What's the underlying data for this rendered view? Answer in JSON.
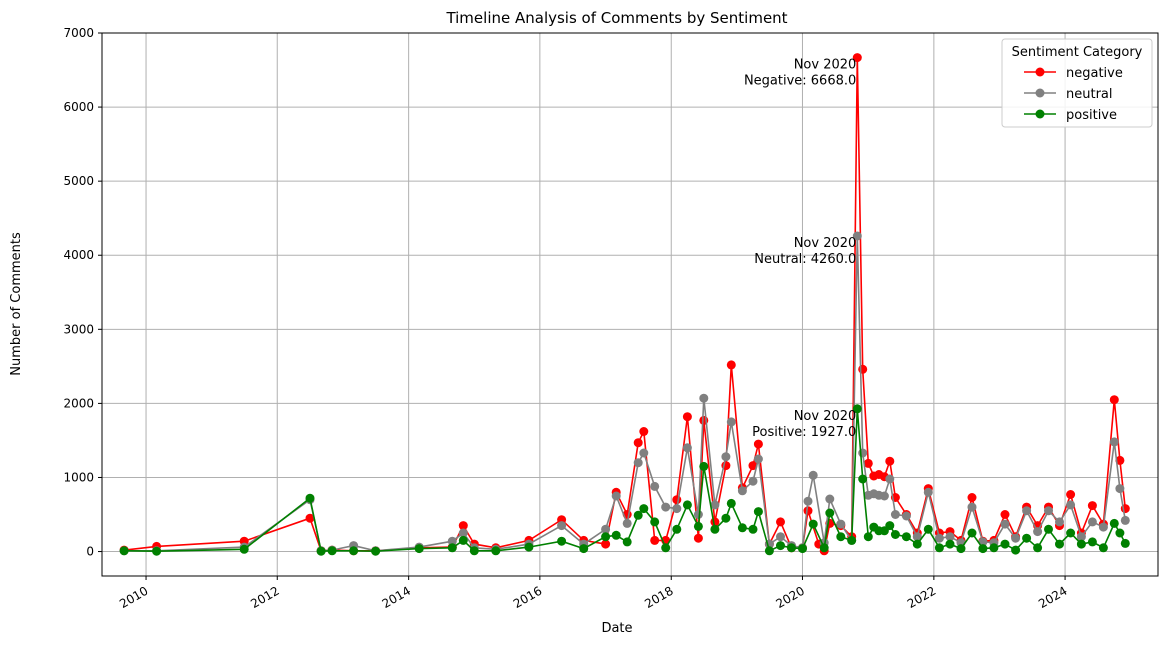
{
  "chart_data": {
    "type": "line",
    "title": "Timeline Analysis of Comments by Sentiment",
    "xlabel": "Date",
    "ylabel": "Number of Comments",
    "xlim": [
      "2009-05-01",
      "2025-06-01"
    ],
    "ylim": [
      -330,
      7000
    ],
    "x_ticks": [
      "2010-01-01",
      "2012-01-01",
      "2014-01-01",
      "2016-01-01",
      "2018-01-01",
      "2020-01-01",
      "2022-01-01",
      "2024-01-01"
    ],
    "x_tick_labels": [
      "2010",
      "2012",
      "2014",
      "2016",
      "2018",
      "2020",
      "2022",
      "2024"
    ],
    "y_ticks": [
      0,
      1000,
      2000,
      3000,
      4000,
      5000,
      6000,
      7000
    ],
    "y_tick_labels": [
      "0",
      "1000",
      "2000",
      "3000",
      "4000",
      "5000",
      "6000",
      "7000"
    ],
    "grid": true,
    "legend": {
      "title": "Sentiment Category",
      "placement": "top-right"
    },
    "series": [
      {
        "name": "negative",
        "color": "#ff0000",
        "points": [
          [
            "2009-09-01",
            20
          ],
          [
            "2010-03-01",
            70
          ],
          [
            "2011-07-01",
            140
          ],
          [
            "2012-07-01",
            450
          ],
          [
            "2012-09-01",
            10
          ],
          [
            "2012-11-01",
            20
          ],
          [
            "2013-03-01",
            10
          ],
          [
            "2013-07-01",
            10
          ],
          [
            "2014-03-01",
            50
          ],
          [
            "2014-09-01",
            60
          ],
          [
            "2014-11-01",
            350
          ],
          [
            "2015-01-01",
            100
          ],
          [
            "2015-05-01",
            50
          ],
          [
            "2015-11-01",
            150
          ],
          [
            "2016-05-01",
            430
          ],
          [
            "2016-09-01",
            150
          ],
          [
            "2017-01-01",
            100
          ],
          [
            "2017-03-01",
            800
          ],
          [
            "2017-05-01",
            500
          ],
          [
            "2017-07-01",
            1470
          ],
          [
            "2017-08-01",
            1620
          ],
          [
            "2017-10-01",
            150
          ],
          [
            "2017-12-01",
            150
          ],
          [
            "2018-02-01",
            700
          ],
          [
            "2018-04-01",
            1820
          ],
          [
            "2018-06-01",
            180
          ],
          [
            "2018-07-01",
            1770
          ],
          [
            "2018-09-01",
            400
          ],
          [
            "2018-11-01",
            1160
          ],
          [
            "2018-12-01",
            2520
          ],
          [
            "2019-02-01",
            860
          ],
          [
            "2019-04-01",
            1160
          ],
          [
            "2019-05-01",
            1450
          ],
          [
            "2019-07-01",
            100
          ],
          [
            "2019-09-01",
            400
          ],
          [
            "2019-11-01",
            50
          ],
          [
            "2020-01-01",
            50
          ],
          [
            "2020-02-01",
            550
          ],
          [
            "2020-04-01",
            100
          ],
          [
            "2020-05-01",
            10
          ],
          [
            "2020-06-01",
            380
          ],
          [
            "2020-08-01",
            350
          ],
          [
            "2020-10-01",
            200
          ],
          [
            "2020-11-01",
            6668
          ],
          [
            "2020-12-01",
            2460
          ],
          [
            "2021-01-01",
            1190
          ],
          [
            "2021-02-01",
            1020
          ],
          [
            "2021-03-01",
            1040
          ],
          [
            "2021-04-01",
            1010
          ],
          [
            "2021-05-01",
            1220
          ],
          [
            "2021-06-01",
            730
          ],
          [
            "2021-08-01",
            500
          ],
          [
            "2021-10-01",
            250
          ],
          [
            "2021-12-01",
            850
          ],
          [
            "2022-02-01",
            250
          ],
          [
            "2022-04-01",
            270
          ],
          [
            "2022-06-01",
            150
          ],
          [
            "2022-08-01",
            730
          ],
          [
            "2022-10-01",
            140
          ],
          [
            "2022-12-01",
            150
          ],
          [
            "2023-02-01",
            500
          ],
          [
            "2023-04-01",
            200
          ],
          [
            "2023-06-01",
            600
          ],
          [
            "2023-08-01",
            350
          ],
          [
            "2023-10-01",
            600
          ],
          [
            "2023-12-01",
            350
          ],
          [
            "2024-02-01",
            770
          ],
          [
            "2024-04-01",
            250
          ],
          [
            "2024-06-01",
            620
          ],
          [
            "2024-08-01",
            370
          ],
          [
            "2024-10-01",
            2050
          ],
          [
            "2024-11-01",
            1230
          ],
          [
            "2024-12-01",
            580
          ]
        ]
      },
      {
        "name": "neutral",
        "color": "#808080",
        "points": [
          [
            "2009-09-01",
            10
          ],
          [
            "2010-03-01",
            10
          ],
          [
            "2011-07-01",
            60
          ],
          [
            "2012-07-01",
            700
          ],
          [
            "2012-09-01",
            10
          ],
          [
            "2012-11-01",
            20
          ],
          [
            "2013-03-01",
            80
          ],
          [
            "2013-07-01",
            10
          ],
          [
            "2014-03-01",
            60
          ],
          [
            "2014-09-01",
            140
          ],
          [
            "2014-11-01",
            250
          ],
          [
            "2015-01-01",
            50
          ],
          [
            "2015-05-01",
            30
          ],
          [
            "2015-11-01",
            100
          ],
          [
            "2016-05-01",
            350
          ],
          [
            "2016-09-01",
            100
          ],
          [
            "2017-01-01",
            300
          ],
          [
            "2017-03-01",
            750
          ],
          [
            "2017-05-01",
            380
          ],
          [
            "2017-07-01",
            1200
          ],
          [
            "2017-08-01",
            1330
          ],
          [
            "2017-10-01",
            880
          ],
          [
            "2017-12-01",
            600
          ],
          [
            "2018-02-01",
            580
          ],
          [
            "2018-04-01",
            1400
          ],
          [
            "2018-06-01",
            500
          ],
          [
            "2018-07-01",
            2070
          ],
          [
            "2018-09-01",
            630
          ],
          [
            "2018-11-01",
            1280
          ],
          [
            "2018-12-01",
            1750
          ],
          [
            "2019-02-01",
            820
          ],
          [
            "2019-04-01",
            950
          ],
          [
            "2019-05-01",
            1250
          ],
          [
            "2019-07-01",
            100
          ],
          [
            "2019-09-01",
            200
          ],
          [
            "2019-11-01",
            80
          ],
          [
            "2020-01-01",
            50
          ],
          [
            "2020-02-01",
            680
          ],
          [
            "2020-03-01",
            1030
          ],
          [
            "2020-05-01",
            120
          ],
          [
            "2020-06-01",
            710
          ],
          [
            "2020-08-01",
            370
          ],
          [
            "2020-10-01",
            150
          ],
          [
            "2020-11-01",
            4260
          ],
          [
            "2020-12-01",
            1330
          ],
          [
            "2021-01-01",
            760
          ],
          [
            "2021-02-01",
            780
          ],
          [
            "2021-03-01",
            760
          ],
          [
            "2021-04-01",
            750
          ],
          [
            "2021-05-01",
            980
          ],
          [
            "2021-06-01",
            500
          ],
          [
            "2021-08-01",
            480
          ],
          [
            "2021-10-01",
            200
          ],
          [
            "2021-12-01",
            800
          ],
          [
            "2022-02-01",
            180
          ],
          [
            "2022-04-01",
            200
          ],
          [
            "2022-06-01",
            120
          ],
          [
            "2022-08-01",
            600
          ],
          [
            "2022-10-01",
            130
          ],
          [
            "2022-12-01",
            120
          ],
          [
            "2023-02-01",
            370
          ],
          [
            "2023-04-01",
            180
          ],
          [
            "2023-06-01",
            550
          ],
          [
            "2023-08-01",
            270
          ],
          [
            "2023-10-01",
            550
          ],
          [
            "2023-12-01",
            400
          ],
          [
            "2024-02-01",
            630
          ],
          [
            "2024-04-01",
            200
          ],
          [
            "2024-06-01",
            400
          ],
          [
            "2024-08-01",
            330
          ],
          [
            "2024-10-01",
            1480
          ],
          [
            "2024-11-01",
            850
          ],
          [
            "2024-12-01",
            420
          ]
        ]
      },
      {
        "name": "positive",
        "color": "#008000",
        "points": [
          [
            "2009-09-01",
            10
          ],
          [
            "2010-03-01",
            5
          ],
          [
            "2011-07-01",
            30
          ],
          [
            "2012-07-01",
            720
          ],
          [
            "2012-09-01",
            5
          ],
          [
            "2012-11-01",
            10
          ],
          [
            "2013-03-01",
            10
          ],
          [
            "2013-07-01",
            5
          ],
          [
            "2014-03-01",
            40
          ],
          [
            "2014-09-01",
            50
          ],
          [
            "2014-11-01",
            150
          ],
          [
            "2015-01-01",
            10
          ],
          [
            "2015-05-01",
            10
          ],
          [
            "2015-11-01",
            60
          ],
          [
            "2016-05-01",
            140
          ],
          [
            "2016-09-01",
            40
          ],
          [
            "2017-01-01",
            200
          ],
          [
            "2017-03-01",
            220
          ],
          [
            "2017-05-01",
            130
          ],
          [
            "2017-07-01",
            490
          ],
          [
            "2017-08-01",
            580
          ],
          [
            "2017-10-01",
            400
          ],
          [
            "2017-12-01",
            50
          ],
          [
            "2018-02-01",
            300
          ],
          [
            "2018-04-01",
            630
          ],
          [
            "2018-06-01",
            340
          ],
          [
            "2018-07-01",
            1150
          ],
          [
            "2018-09-01",
            300
          ],
          [
            "2018-11-01",
            450
          ],
          [
            "2018-12-01",
            650
          ],
          [
            "2019-02-01",
            320
          ],
          [
            "2019-04-01",
            300
          ],
          [
            "2019-05-01",
            540
          ],
          [
            "2019-07-01",
            10
          ],
          [
            "2019-09-01",
            80
          ],
          [
            "2019-11-01",
            50
          ],
          [
            "2020-01-01",
            40
          ],
          [
            "2020-03-01",
            370
          ],
          [
            "2020-05-01",
            50
          ],
          [
            "2020-06-01",
            520
          ],
          [
            "2020-08-01",
            200
          ],
          [
            "2020-10-01",
            150
          ],
          [
            "2020-11-01",
            1927
          ],
          [
            "2020-12-01",
            980
          ],
          [
            "2021-01-01",
            200
          ],
          [
            "2021-02-01",
            330
          ],
          [
            "2021-03-01",
            280
          ],
          [
            "2021-04-01",
            280
          ],
          [
            "2021-05-01",
            350
          ],
          [
            "2021-06-01",
            230
          ],
          [
            "2021-08-01",
            200
          ],
          [
            "2021-10-01",
            100
          ],
          [
            "2021-12-01",
            300
          ],
          [
            "2022-02-01",
            50
          ],
          [
            "2022-04-01",
            100
          ],
          [
            "2022-06-01",
            40
          ],
          [
            "2022-08-01",
            250
          ],
          [
            "2022-10-01",
            40
          ],
          [
            "2022-12-01",
            50
          ],
          [
            "2023-02-01",
            100
          ],
          [
            "2023-04-01",
            20
          ],
          [
            "2023-06-01",
            180
          ],
          [
            "2023-08-01",
            50
          ],
          [
            "2023-10-01",
            300
          ],
          [
            "2023-12-01",
            100
          ],
          [
            "2024-02-01",
            250
          ],
          [
            "2024-04-01",
            100
          ],
          [
            "2024-06-01",
            130
          ],
          [
            "2024-08-01",
            50
          ],
          [
            "2024-10-01",
            380
          ],
          [
            "2024-11-01",
            250
          ],
          [
            "2024-12-01",
            110
          ]
        ]
      }
    ],
    "annotations": [
      {
        "x": "2020-11-01",
        "y": 6668,
        "line1": "Nov 2020",
        "line2": "Negative: 6668.0"
      },
      {
        "x": "2020-11-01",
        "y": 4260,
        "line1": "Nov 2020",
        "line2": "Neutral: 4260.0"
      },
      {
        "x": "2020-11-01",
        "y": 1927,
        "line1": "Nov 2020",
        "line2": "Positive: 1927.0"
      }
    ]
  }
}
